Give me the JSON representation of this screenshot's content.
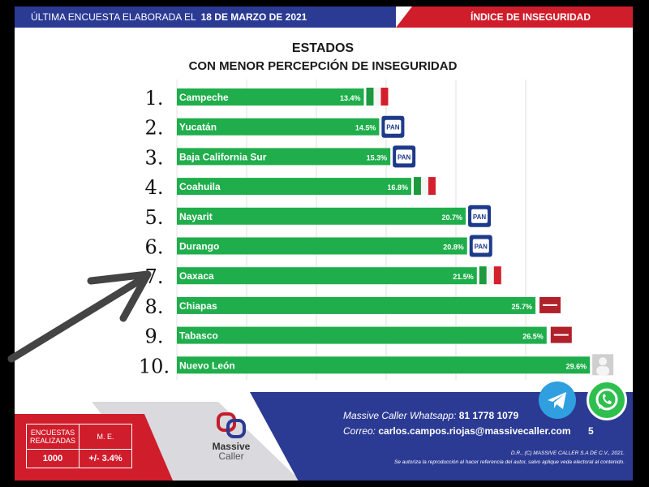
{
  "header": {
    "survey_label": "ÚLTIMA ENCUESTA ELABORADA EL",
    "survey_date": "18 DE MARZO DE 2021",
    "index_label": "ÍNDICE DE INSEGURIDAD"
  },
  "title": {
    "line1": "ESTADOS",
    "line2": "CON MENOR PERCEPCIÓN DE INSEGURIDAD"
  },
  "colors": {
    "bar": "#1fae4b",
    "navy": "#2b3a93",
    "red": "#d01d2b",
    "pan": "#1e3a8a",
    "morena": "#b0212a"
  },
  "chart_data": {
    "type": "bar",
    "orientation": "horizontal",
    "ranks": [
      "1.",
      "2.",
      "3.",
      "4.",
      "5.",
      "6.",
      "7.",
      "8.",
      "9.",
      "10."
    ],
    "categories": [
      "Campeche",
      "Yucatán",
      "Baja California Sur",
      "Coahuila",
      "Nayarit",
      "Durango",
      "Oaxaca",
      "Chiapas",
      "Tabasco",
      "Nuevo León"
    ],
    "values": [
      13.4,
      14.5,
      15.3,
      16.8,
      20.7,
      20.8,
      21.5,
      25.7,
      26.5,
      29.6
    ],
    "value_labels": [
      "13.4%",
      "14.5%",
      "15.3%",
      "16.8%",
      "20.7%",
      "20.8%",
      "21.5%",
      "25.7%",
      "26.5%",
      "29.6%"
    ],
    "party": [
      "PRI",
      "PAN",
      "PAN",
      "PRI",
      "PAN",
      "PAN",
      "PRI",
      "MORENA",
      "MORENA",
      "IND"
    ],
    "party_icons": [
      "pri-logo-icon",
      "pan-logo-icon",
      "pan-logo-icon",
      "pri-logo-icon",
      "pan-logo-icon",
      "pan-logo-icon",
      "pri-logo-icon",
      "morena-logo-icon",
      "morena-logo-icon",
      "independent-portrait-icon"
    ],
    "pan_label": "PAN",
    "grid": true,
    "xlim": [
      0,
      30
    ]
  },
  "stats": {
    "surveys_label": "ENCUESTAS REALIZADAS",
    "me_label": "M. E.",
    "surveys_value": "1000",
    "me_value": "+/- 3.4%"
  },
  "logo": {
    "name": "Massive",
    "sub": "Caller"
  },
  "contact": {
    "whatsapp_label": "Massive Caller Whatsapp:",
    "whatsapp_number": "81 1778 1079",
    "email_label": "Correo:",
    "email": "carlos.campos.riojas@massivecaller.com",
    "page": "5"
  },
  "legal": {
    "line1": "D.R., (C) MASSIVE CALLER S.A DE C.V., 2021.",
    "line2": "Se autoriza la reproducción al hacer referencia del autor, salvo aplique veda electoral al contenido."
  },
  "icons": {
    "telegram": "telegram-icon",
    "whatsapp": "whatsapp-icon",
    "arrow": "arrow-pointer-icon"
  }
}
